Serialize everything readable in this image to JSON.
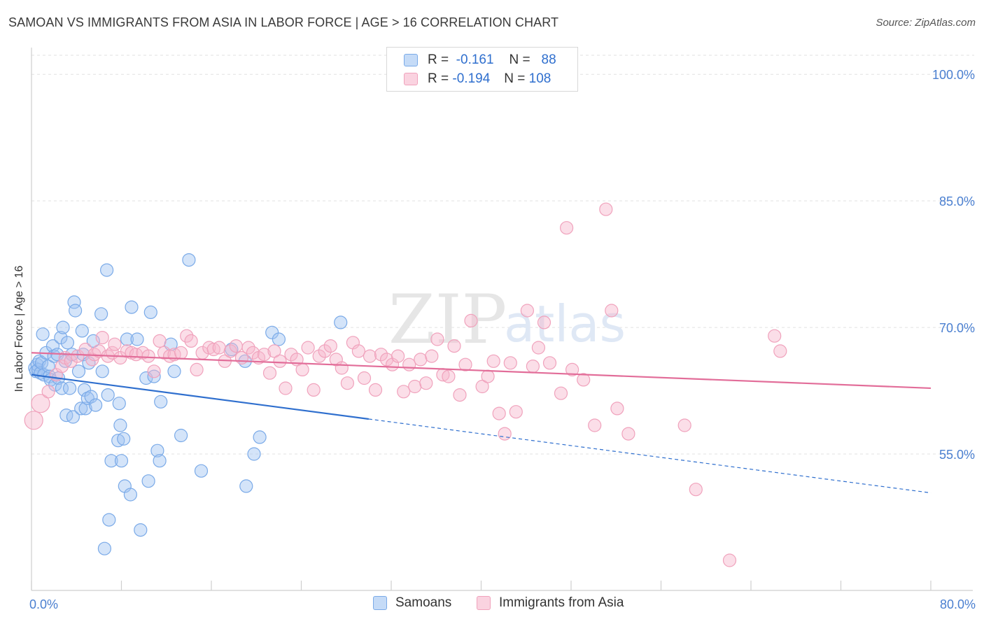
{
  "title": "SAMOAN VS IMMIGRANTS FROM ASIA IN LABOR FORCE | AGE > 16 CORRELATION CHART",
  "source": "Source: ZipAtlas.com",
  "watermark": {
    "zip": "ZIP",
    "atlas": "atlas"
  },
  "legend_top": {
    "rows": [
      {
        "r_label": "R =",
        "r_value": "-0.161",
        "n_label": "N =",
        "n_value": "88"
      },
      {
        "r_label": "R =",
        "r_value": "-0.194",
        "n_label": "N =",
        "n_value": "108"
      }
    ]
  },
  "chart_data": {
    "type": "scatter",
    "ylabel": "In Labor Force | Age > 16",
    "xlim": [
      0,
      80
    ],
    "ylim": [
      40,
      103
    ],
    "x_tick_labels": [
      "0.0%",
      "80.0%"
    ],
    "y_tick_labels": [
      "55.0%",
      "70.0%",
      "85.0%",
      "100.0%"
    ],
    "y_ticks": [
      55,
      70,
      85,
      100
    ],
    "x_minor_ticks": [
      0,
      8,
      16,
      24,
      32,
      40,
      48,
      56,
      64,
      72,
      80
    ],
    "grid": true,
    "series": [
      {
        "name": "Samoans",
        "color": "#7aaae8",
        "fill": "rgba(160,196,242,0.45)",
        "trend_color": "#2f6fce",
        "trend": {
          "x0": 0,
          "y0": 64.4,
          "x_solid_end": 30,
          "x1": 80,
          "y1": 50.4
        },
        "points": [
          [
            0.3,
            65.2
          ],
          [
            0.4,
            64.8
          ],
          [
            0.5,
            65.6
          ],
          [
            0.6,
            65.0
          ],
          [
            0.7,
            66.0
          ],
          [
            0.8,
            64.6
          ],
          [
            0.9,
            65.8
          ],
          [
            1.0,
            69.2
          ],
          [
            1.1,
            64.4
          ],
          [
            1.3,
            67.0
          ],
          [
            1.5,
            65.4
          ],
          [
            1.6,
            64.2
          ],
          [
            1.7,
            63.8
          ],
          [
            1.9,
            67.8
          ],
          [
            2.0,
            66.6
          ],
          [
            2.1,
            63.2
          ],
          [
            2.3,
            66.8
          ],
          [
            2.4,
            64.0
          ],
          [
            2.6,
            68.8
          ],
          [
            2.7,
            62.8
          ],
          [
            2.8,
            70.0
          ],
          [
            3.0,
            66.0
          ],
          [
            3.1,
            59.6
          ],
          [
            3.2,
            68.2
          ],
          [
            3.4,
            62.8
          ],
          [
            3.6,
            66.8
          ],
          [
            3.7,
            59.4
          ],
          [
            3.8,
            73.0
          ],
          [
            3.9,
            72.0
          ],
          [
            4.2,
            64.8
          ],
          [
            4.4,
            60.4
          ],
          [
            4.5,
            69.6
          ],
          [
            4.6,
            66.8
          ],
          [
            4.7,
            62.6
          ],
          [
            4.8,
            60.4
          ],
          [
            5.0,
            61.6
          ],
          [
            5.1,
            65.8
          ],
          [
            5.3,
            61.8
          ],
          [
            5.5,
            68.4
          ],
          [
            5.7,
            60.8
          ],
          [
            6.2,
            71.6
          ],
          [
            6.3,
            64.8
          ],
          [
            6.5,
            43.8
          ],
          [
            6.7,
            76.8
          ],
          [
            6.8,
            62.0
          ],
          [
            6.9,
            47.2
          ],
          [
            7.1,
            54.2
          ],
          [
            7.7,
            56.6
          ],
          [
            7.8,
            61.0
          ],
          [
            7.9,
            58.4
          ],
          [
            8.0,
            54.2
          ],
          [
            8.2,
            56.8
          ],
          [
            8.3,
            51.2
          ],
          [
            8.5,
            68.6
          ],
          [
            8.8,
            50.2
          ],
          [
            8.9,
            72.4
          ],
          [
            9.4,
            68.6
          ],
          [
            9.7,
            46.0
          ],
          [
            10.2,
            64.0
          ],
          [
            10.4,
            51.8
          ],
          [
            10.6,
            71.8
          ],
          [
            10.9,
            64.2
          ],
          [
            11.2,
            55.4
          ],
          [
            11.4,
            54.2
          ],
          [
            11.5,
            61.2
          ],
          [
            12.4,
            68.0
          ],
          [
            12.7,
            64.8
          ],
          [
            13.3,
            57.2
          ],
          [
            14.0,
            78.0
          ],
          [
            15.1,
            53.0
          ],
          [
            17.8,
            67.4
          ],
          [
            19.0,
            66.0
          ],
          [
            19.1,
            51.2
          ],
          [
            19.8,
            55.0
          ],
          [
            20.3,
            57.0
          ],
          [
            21.4,
            69.4
          ],
          [
            22.0,
            68.6
          ],
          [
            27.5,
            70.6
          ]
        ]
      },
      {
        "name": "Immigrants from Asia",
        "color": "#f0a2bc",
        "fill": "rgba(246,182,203,0.45)",
        "trend_color": "#e26d99",
        "trend": {
          "x0": 0,
          "y0": 67.0,
          "x1": 80,
          "y1": 62.8
        },
        "points": [
          [
            0.2,
            59.0
          ],
          [
            0.8,
            61.0
          ],
          [
            1.5,
            62.4
          ],
          [
            2.2,
            64.4
          ],
          [
            2.7,
            65.4
          ],
          [
            3.0,
            66.4
          ],
          [
            3.5,
            66.0
          ],
          [
            4.1,
            66.6
          ],
          [
            4.8,
            67.4
          ],
          [
            5.4,
            66.2
          ],
          [
            5.6,
            66.8
          ],
          [
            6.0,
            67.2
          ],
          [
            6.3,
            68.8
          ],
          [
            6.8,
            66.6
          ],
          [
            7.2,
            67.0
          ],
          [
            7.4,
            68.0
          ],
          [
            7.9,
            66.4
          ],
          [
            8.5,
            67.2
          ],
          [
            8.9,
            67.0
          ],
          [
            9.3,
            66.8
          ],
          [
            9.9,
            67.0
          ],
          [
            10.4,
            66.6
          ],
          [
            10.9,
            64.8
          ],
          [
            11.4,
            68.4
          ],
          [
            11.8,
            67.0
          ],
          [
            12.3,
            66.6
          ],
          [
            12.7,
            66.8
          ],
          [
            13.3,
            67.0
          ],
          [
            13.8,
            69.0
          ],
          [
            14.2,
            68.4
          ],
          [
            14.7,
            65.0
          ],
          [
            15.2,
            67.0
          ],
          [
            15.8,
            67.6
          ],
          [
            16.2,
            67.4
          ],
          [
            16.7,
            67.6
          ],
          [
            17.2,
            66.0
          ],
          [
            17.7,
            67.2
          ],
          [
            18.2,
            67.8
          ],
          [
            18.7,
            66.4
          ],
          [
            19.3,
            67.6
          ],
          [
            19.7,
            67.0
          ],
          [
            20.2,
            66.4
          ],
          [
            20.7,
            66.8
          ],
          [
            21.2,
            64.6
          ],
          [
            21.6,
            67.2
          ],
          [
            22.1,
            66.0
          ],
          [
            22.6,
            62.8
          ],
          [
            23.1,
            66.8
          ],
          [
            23.6,
            66.2
          ],
          [
            24.1,
            65.0
          ],
          [
            24.6,
            67.6
          ],
          [
            25.1,
            62.6
          ],
          [
            25.6,
            66.6
          ],
          [
            26.1,
            67.2
          ],
          [
            26.6,
            67.8
          ],
          [
            27.1,
            66.2
          ],
          [
            27.6,
            65.2
          ],
          [
            28.1,
            63.4
          ],
          [
            28.6,
            68.2
          ],
          [
            29.1,
            67.2
          ],
          [
            29.6,
            64.0
          ],
          [
            30.1,
            66.6
          ],
          [
            30.6,
            62.6
          ],
          [
            31.1,
            66.8
          ],
          [
            31.6,
            66.2
          ],
          [
            32.1,
            65.6
          ],
          [
            32.6,
            66.6
          ],
          [
            33.1,
            62.4
          ],
          [
            33.6,
            65.6
          ],
          [
            34.1,
            63.0
          ],
          [
            34.6,
            66.2
          ],
          [
            35.1,
            63.4
          ],
          [
            35.6,
            66.6
          ],
          [
            36.1,
            68.6
          ],
          [
            36.6,
            64.4
          ],
          [
            37.1,
            64.2
          ],
          [
            37.6,
            67.8
          ],
          [
            38.1,
            62.0
          ],
          [
            38.6,
            65.6
          ],
          [
            39.1,
            70.8
          ],
          [
            40.1,
            63.0
          ],
          [
            40.6,
            64.2
          ],
          [
            41.1,
            66.0
          ],
          [
            41.6,
            59.8
          ],
          [
            42.1,
            57.4
          ],
          [
            42.6,
            65.8
          ],
          [
            43.1,
            60.0
          ],
          [
            44.1,
            72.0
          ],
          [
            44.6,
            65.4
          ],
          [
            45.1,
            67.6
          ],
          [
            45.6,
            70.6
          ],
          [
            46.1,
            65.8
          ],
          [
            47.1,
            62.2
          ],
          [
            47.6,
            81.8
          ],
          [
            48.1,
            65.0
          ],
          [
            49.1,
            63.8
          ],
          [
            50.1,
            58.4
          ],
          [
            51.1,
            84.0
          ],
          [
            51.6,
            72.0
          ],
          [
            52.1,
            60.4
          ],
          [
            53.1,
            57.4
          ],
          [
            58.1,
            58.4
          ],
          [
            59.1,
            50.8
          ],
          [
            62.1,
            42.4
          ],
          [
            66.1,
            69.0
          ],
          [
            66.6,
            67.2
          ]
        ]
      }
    ]
  },
  "legend_bottom": [
    {
      "label": "Samoans"
    },
    {
      "label": "Immigrants from Asia"
    }
  ]
}
